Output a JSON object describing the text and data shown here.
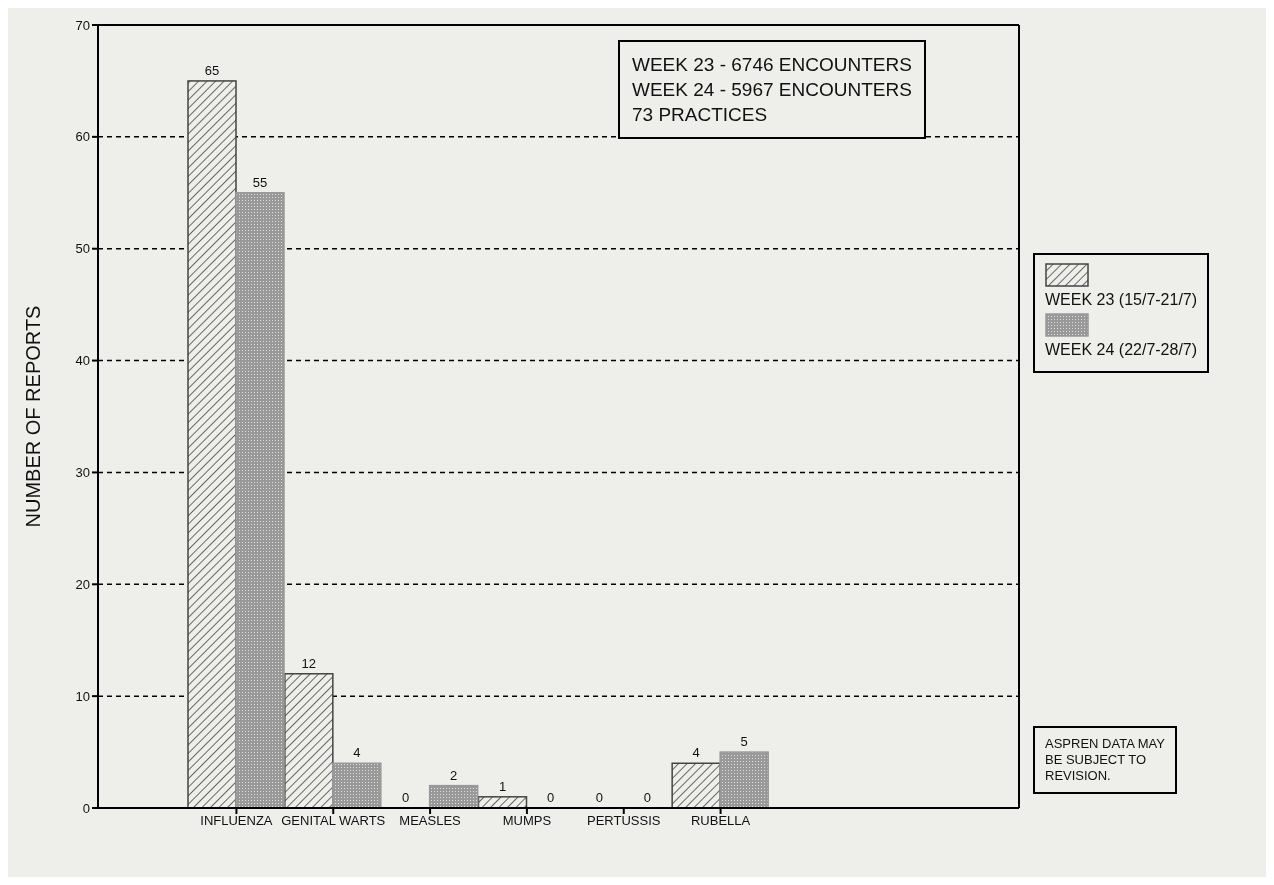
{
  "chart_data": {
    "type": "bar",
    "ylabel": "NUMBER OF REPORTS",
    "categories": [
      "INFLUENZA",
      "GENITAL WARTS",
      "MEASLES",
      "MUMPS",
      "PERTUSSIS",
      "RUBELLA"
    ],
    "series": [
      {
        "name": "WEEK 23 (15/7-21/7)",
        "color": "#444444",
        "values": [
          65,
          12,
          0,
          1,
          0,
          4
        ]
      },
      {
        "name": "WEEK 24 (22/7-28/7)",
        "color": "#999999",
        "values": [
          55,
          4,
          2,
          0,
          0,
          5
        ]
      }
    ],
    "ylim": [
      0,
      70
    ],
    "yticks": [
      0,
      10,
      20,
      30,
      40,
      50,
      60,
      70
    ],
    "grid": "y",
    "data_labels": true,
    "legend": "right",
    "annotations": [
      "WEEK 23 - 6746 ENCOUNTERS\nWEEK 24 - 5967 ENCOUNTERS\n73 PRACTICES",
      "ASPREN DATA MAY\nBE SUBJECT TO\nREVISION."
    ]
  }
}
